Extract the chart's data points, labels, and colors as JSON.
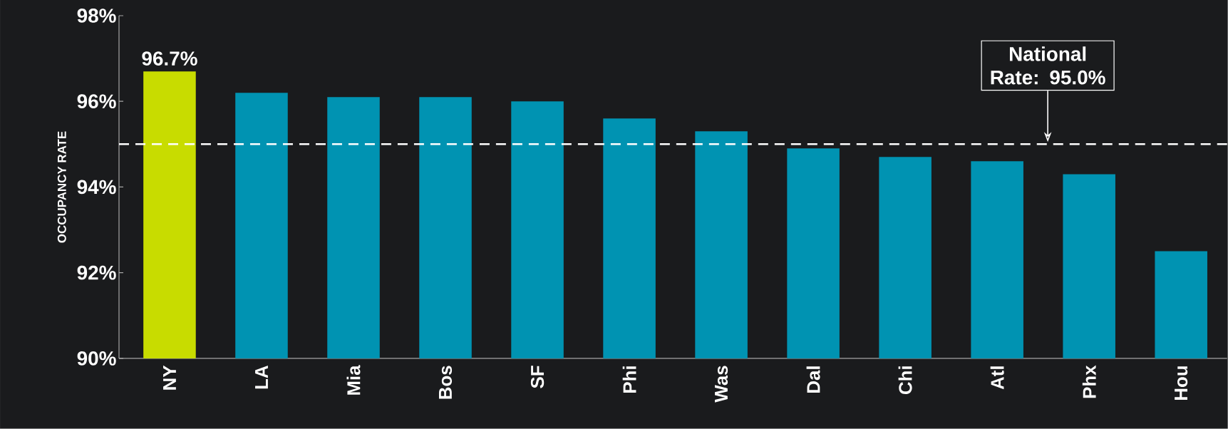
{
  "chart_data": {
    "type": "bar",
    "ylabel": "OCCUPANCY RATE",
    "categories": [
      "NY",
      "LA",
      "Mia",
      "Bos",
      "SF",
      "Phi",
      "Was",
      "Dal",
      "Chi",
      "Atl",
      "Phx",
      "Hou"
    ],
    "values": [
      96.7,
      96.2,
      96.1,
      96.1,
      96.0,
      95.6,
      95.3,
      94.9,
      94.7,
      94.6,
      94.3,
      92.5
    ],
    "colors": [
      "#c8dc00",
      "#0093b2",
      "#0093b2",
      "#0093b2",
      "#0093b2",
      "#0093b2",
      "#0093b2",
      "#0093b2",
      "#0093b2",
      "#0093b2",
      "#0093b2",
      "#0093b2"
    ],
    "value_labels": [
      "96.7%",
      null,
      null,
      null,
      null,
      null,
      null,
      null,
      null,
      null,
      null,
      null
    ],
    "ylim": [
      90,
      98
    ],
    "yticks": [
      {
        "value": 90,
        "label": "90%"
      },
      {
        "value": 92,
        "label": "92%"
      },
      {
        "value": 94,
        "label": "94%"
      },
      {
        "value": 96,
        "label": "96%"
      },
      {
        "value": 98,
        "label": "98%"
      }
    ],
    "ref_lines": [
      {
        "axis": "y",
        "value": 95.0,
        "label": "National Rate: 95.0%",
        "color": "#ffffff",
        "line_style": "dashed"
      }
    ]
  }
}
